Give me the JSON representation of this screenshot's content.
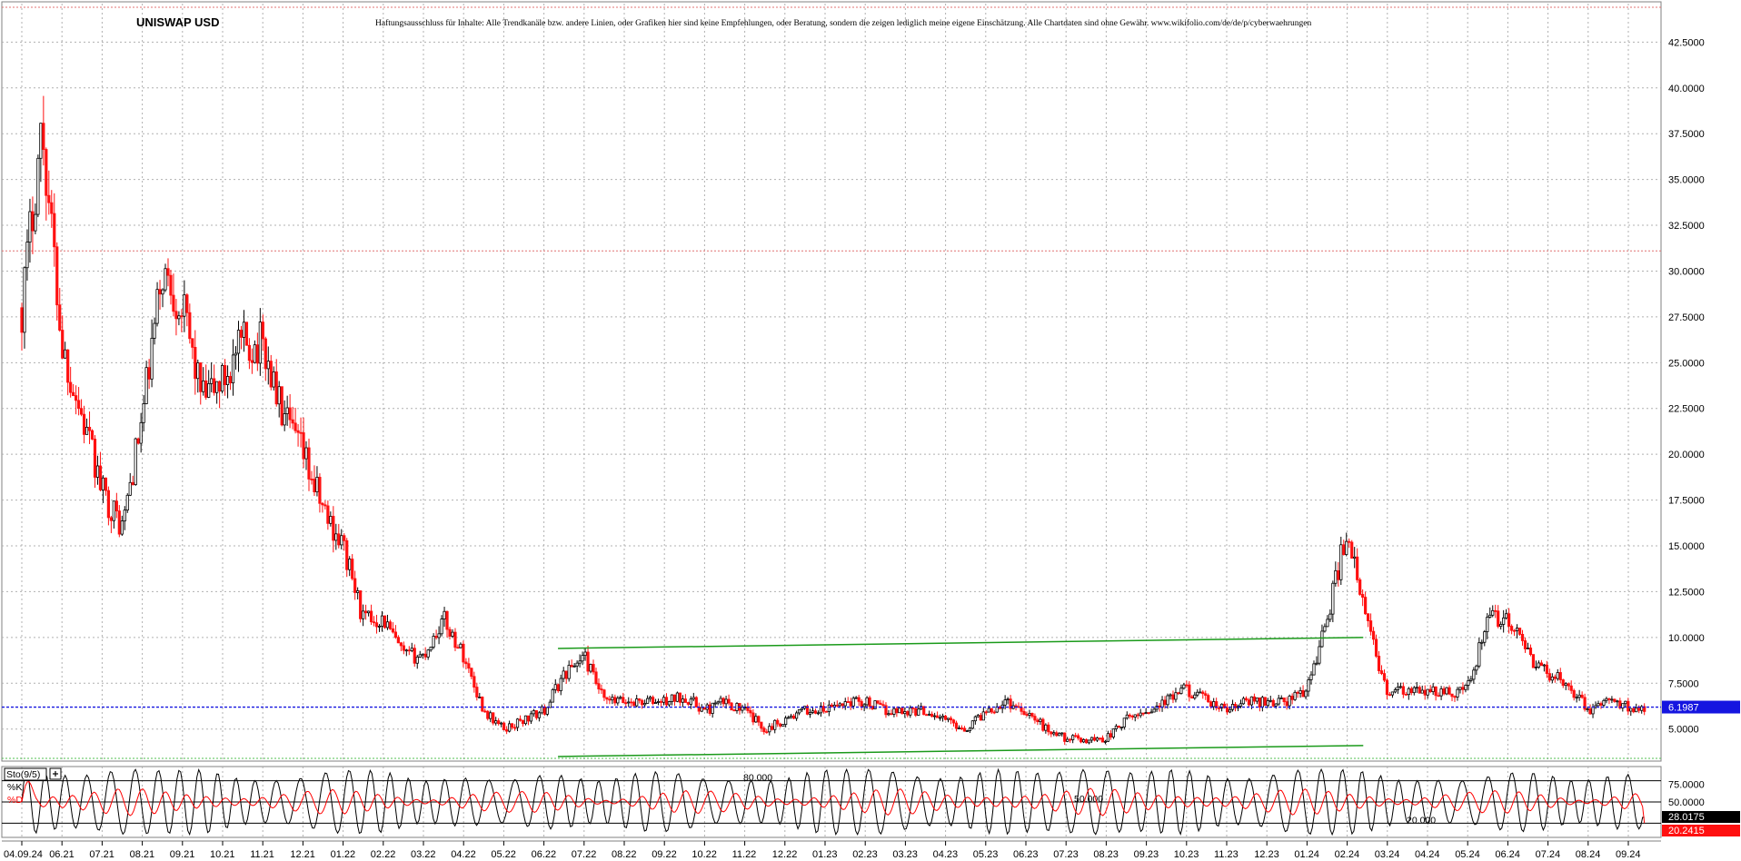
{
  "chart_data": {
    "type": "candlestick",
    "title": "UNISWAP USD",
    "disclaimer": "Haftungsausschluss für Inhalte: Alle Trendkanäle bzw. andere Linien, oder Grafiken hier sind keine Empfehlungen, oder Beratung, sondern die zeigen lediglich meine eigene Einschätzung. Alle Chartdaten sind ohne Gewähr. www.wikifolio.com/de/de/p/cyberwaehrungen",
    "price_axis": {
      "ylim": [
        3.25,
        44.6
      ],
      "ticks": [
        "42.5000",
        "40.0000",
        "37.5000",
        "35.0000",
        "32.5000",
        "30.0000",
        "27.5000",
        "25.0000",
        "22.5000",
        "20.0000",
        "17.5000",
        "15.0000",
        "12.5000",
        "10.0000",
        "7.5000",
        "5.0000"
      ],
      "tick_values": [
        42.5,
        40,
        37.5,
        35,
        32.5,
        30,
        27.5,
        25,
        22.5,
        20,
        17.5,
        15,
        12.5,
        10,
        7.5,
        5
      ],
      "last_price_label": "6.1987",
      "last_price": 6.1987,
      "last_price_color": "#1515e0"
    },
    "time_axis": {
      "labels": [
        "04.09.24",
        "06.21",
        "07.21",
        "08.21",
        "09.21",
        "10.21",
        "11.21",
        "12.21",
        "01.22",
        "02.22",
        "03.22",
        "04.22",
        "05.22",
        "06.22",
        "07.22",
        "08.22",
        "09.22",
        "10.22",
        "11.22",
        "12.22",
        "01.23",
        "02.23",
        "03.23",
        "04.23",
        "05.23",
        "06.23",
        "07.23",
        "08.23",
        "09.23",
        "10.23",
        "11.23",
        "12.23",
        "01.24",
        "02.24",
        "03.24",
        "04.24",
        "05.24",
        "06.24",
        "07.24",
        "08.24",
        "09.24"
      ],
      "tick_index": [
        0,
        1,
        2,
        3,
        4,
        5,
        6,
        7,
        8,
        9,
        10,
        11,
        12,
        13,
        14,
        15,
        16,
        17,
        18,
        19,
        20,
        21,
        22,
        23,
        24,
        25,
        26,
        27,
        28,
        29,
        30,
        31,
        32,
        33,
        34,
        35,
        36,
        37,
        38,
        39,
        40
      ]
    },
    "monthly_path": {
      "comment_free": true,
      "month_index": [
        0,
        0.5,
        1,
        1.5,
        2,
        2.5,
        3,
        3.5,
        4,
        4.5,
        5,
        5.5,
        6,
        6.5,
        7,
        7.5,
        8,
        8.5,
        9,
        9.5,
        10,
        10.5,
        11,
        11.5,
        12,
        12.5,
        13,
        13.5,
        14,
        14.5,
        15,
        15.5,
        16,
        16.5,
        17,
        17.5,
        18,
        18.5,
        19,
        19.5,
        20,
        20.5,
        21,
        21.5,
        22,
        22.5,
        23,
        23.5,
        24,
        24.5,
        25,
        25.5,
        26,
        26.5,
        27,
        27.5,
        28,
        28.5,
        29,
        29.5,
        30,
        30.5,
        31,
        31.5,
        32,
        32.5,
        33,
        33.3,
        33.6,
        34,
        34.5,
        35,
        35.5,
        36,
        36.5,
        37,
        37.5,
        38,
        38.5,
        39,
        39.5,
        40,
        40.4
      ],
      "price": [
        28,
        38,
        26,
        22,
        18,
        16,
        22,
        30,
        28,
        23,
        24,
        26,
        26,
        22,
        20,
        17,
        15,
        11,
        11,
        9,
        9,
        11,
        9,
        6,
        5,
        5.5,
        6,
        8,
        9,
        6.5,
        6.5,
        6.5,
        6.5,
        6.8,
        6,
        6.5,
        6,
        5,
        5.5,
        6,
        6,
        6.5,
        6.5,
        6,
        6,
        6,
        5.5,
        5,
        6,
        6.5,
        6,
        5,
        4.5,
        4.4,
        4.5,
        5.5,
        6,
        6.5,
        7.2,
        6.5,
        6,
        6.5,
        6.5,
        6.5,
        7.2,
        11,
        16,
        12.5,
        10,
        7,
        7,
        7,
        7,
        7.2,
        11,
        11,
        9,
        8,
        7.5,
        6,
        6.5,
        6.2,
        6.2
      ]
    },
    "indicator": {
      "name": "Sto(9/5)",
      "k_label": "%K",
      "d_label": "%D",
      "ylim": [
        0,
        100
      ],
      "levels": [
        80,
        50,
        20
      ],
      "level_labels": [
        "80.000",
        "50.000",
        "20.000"
      ],
      "axis_ticks": [
        "75.0000",
        "50.0000"
      ],
      "axis_tick_values": [
        75,
        50
      ],
      "k_value_label": "28.0175",
      "d_value_label": "20.2415",
      "k_value": 28.0175,
      "d_value": 20.2415
    },
    "trendlines": [
      {
        "from": [
          13.35,
          9.4
        ],
        "to": [
          33.4,
          10.0
        ],
        "color": "#1a9a1a"
      },
      {
        "from": [
          13.35,
          3.5
        ],
        "to": [
          33.4,
          4.1
        ],
        "color": "#1a9a1a"
      }
    ],
    "horizontal_levels": [
      {
        "value": 44.4,
        "color": "#e07070"
      },
      {
        "value": 31.1,
        "color": "#e07070"
      },
      {
        "value": 3.4,
        "color": "#50c050"
      }
    ],
    "colors": {
      "up_candle": "#000000",
      "down_candle": "#ff1010",
      "grid": "#b0b0b0",
      "k_line": "#000000",
      "d_line": "#ff0000"
    },
    "grid": true
  }
}
